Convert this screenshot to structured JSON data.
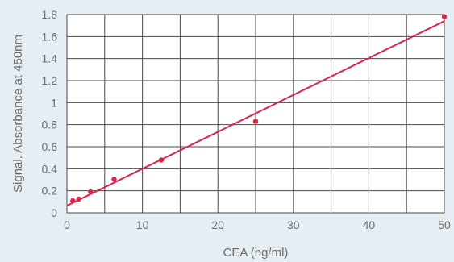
{
  "chart_data": {
    "type": "scatter",
    "xlabel": "CEA (ng/ml)",
    "ylabel": "Signal. Absorbance at 450nm",
    "xlim": [
      0,
      50
    ],
    "ylim": [
      0,
      1.8
    ],
    "xticks": [
      0,
      10,
      20,
      30,
      40,
      50
    ],
    "xtick_labels": [
      "0",
      "10",
      "20",
      "30",
      "40",
      "50"
    ],
    "yticks": [
      0,
      0.2,
      0.4,
      0.6,
      0.8,
      1.0,
      1.2,
      1.4,
      1.6,
      1.8
    ],
    "ytick_labels": [
      "0",
      "0.2",
      "0.4",
      "0.6",
      "0.8",
      "1",
      "1.2",
      "1.4",
      "1.6",
      "1.8"
    ],
    "grid": true,
    "x_minor_divisions": 2,
    "series": [
      {
        "type": "scatter",
        "x": [
          0.78,
          1.56,
          3.13,
          6.25,
          12.5,
          25,
          50
        ],
        "y": [
          0.11,
          0.125,
          0.19,
          0.305,
          0.48,
          0.83,
          1.78
        ]
      },
      {
        "type": "line",
        "x": [
          0,
          50
        ],
        "y": [
          0.065,
          1.74
        ]
      }
    ],
    "colors": {
      "background": "#e6eef3",
      "plot_background": "#ffffff",
      "grid": "#4a4a4a",
      "marker": "#d9264a",
      "line": "#d9264a",
      "text": "#6b6b6b"
    }
  }
}
